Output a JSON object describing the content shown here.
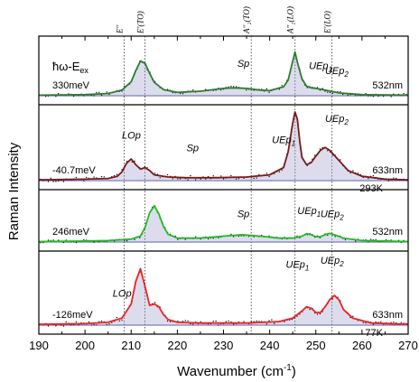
{
  "chart_data": {
    "type": "line",
    "xlabel": "Wavenumber (cm",
    "xlabel_sup": "-1",
    "xlabel_tail": ")",
    "ylabel": "Raman Intensity",
    "xlim": [
      190,
      270
    ],
    "xticks": [
      "190",
      "200",
      "210",
      "220",
      "230",
      "240",
      "250",
      "260",
      "270"
    ],
    "header": "ħω-E",
    "header_sub": "ex",
    "reference_lines": [
      {
        "label": "E''",
        "x": 208.5
      },
      {
        "label": "E'(TO)",
        "x": 213.0
      },
      {
        "label": "A''₂(TO)",
        "x": 236.0
      },
      {
        "label": "A''₂(LO)",
        "x": 245.5
      },
      {
        "label": "E'(LO)",
        "x": 253.5
      }
    ],
    "panels": [
      {
        "detuning": "330meV",
        "laser": "532nm",
        "temperature": "",
        "color": "#2e7d2e",
        "x": [
          190,
          200,
          205,
          208,
          210,
          211,
          212,
          213,
          214,
          215,
          217,
          220,
          225,
          230,
          232,
          235,
          238,
          240,
          243,
          244,
          245,
          245.5,
          246,
          247,
          248,
          249,
          250,
          252,
          255,
          260,
          270
        ],
        "y": [
          0.01,
          0.02,
          0.04,
          0.1,
          0.25,
          0.45,
          0.62,
          0.58,
          0.4,
          0.24,
          0.11,
          0.06,
          0.08,
          0.13,
          0.14,
          0.13,
          0.1,
          0.09,
          0.16,
          0.28,
          0.62,
          0.78,
          0.6,
          0.3,
          0.17,
          0.14,
          0.13,
          0.1,
          0.05,
          0.02,
          0.01
        ],
        "labels": [
          {
            "text": "Sp",
            "x": 233,
            "y": 0.55
          },
          {
            "text": "UEp",
            "sub": "1",
            "x": 248.5,
            "y": 0.52
          },
          {
            "text": "UEp",
            "sub": "2",
            "x": 252,
            "y": 0.45
          }
        ]
      },
      {
        "detuning": "-40.7meV",
        "laser": "633nm",
        "temperature": "293K",
        "color": "#7a1a1a",
        "x": [
          190,
          200,
          205,
          207,
          208,
          209,
          210,
          211,
          212,
          213,
          214,
          215,
          218,
          222,
          228,
          235,
          240,
          243,
          244,
          245,
          245.5,
          246,
          246.5,
          247,
          248,
          249,
          250,
          251,
          252,
          253,
          255,
          257,
          260,
          265,
          270
        ],
        "y": [
          0.01,
          0.02,
          0.03,
          0.06,
          0.12,
          0.24,
          0.3,
          0.22,
          0.16,
          0.18,
          0.14,
          0.08,
          0.05,
          0.04,
          0.04,
          0.05,
          0.08,
          0.18,
          0.4,
          0.8,
          0.95,
          0.85,
          0.55,
          0.32,
          0.22,
          0.25,
          0.34,
          0.42,
          0.46,
          0.42,
          0.28,
          0.14,
          0.06,
          0.02,
          0.01
        ],
        "labels": [
          {
            "text": "LOp",
            "x": 208,
            "y": 0.6
          },
          {
            "text": "Sp",
            "x": 222,
            "y": 0.45
          },
          {
            "text": "UEp",
            "sub": "1",
            "x": 240.5,
            "y": 0.55
          },
          {
            "text": "UEp",
            "sub": "2",
            "x": 252,
            "y": 0.8
          }
        ]
      },
      {
        "detuning": "246meV",
        "laser": "532nm",
        "temperature": "",
        "color": "#22bb22",
        "x": [
          190,
          200,
          205,
          210,
          212,
          213,
          214,
          215,
          216,
          217,
          218,
          220,
          225,
          230,
          234,
          238,
          242,
          245,
          247,
          248,
          249,
          250,
          251,
          252,
          253,
          254,
          256,
          260,
          270
        ],
        "y": [
          0.01,
          0.02,
          0.03,
          0.06,
          0.12,
          0.3,
          0.6,
          0.74,
          0.58,
          0.32,
          0.16,
          0.08,
          0.08,
          0.12,
          0.15,
          0.12,
          0.08,
          0.08,
          0.12,
          0.17,
          0.15,
          0.11,
          0.11,
          0.15,
          0.18,
          0.15,
          0.08,
          0.03,
          0.01
        ],
        "labels": [
          {
            "text": "Sp",
            "x": 233,
            "y": 0.55
          },
          {
            "text": "UEp",
            "sub": "1",
            "x": 246,
            "y": 0.6
          },
          {
            "text": "UEp",
            "sub": "2",
            "x": 251,
            "y": 0.55
          }
        ]
      },
      {
        "detuning": "-126meV",
        "laser": "633nm",
        "temperature": "77K",
        "color": "#ee2222",
        "x": [
          190,
          200,
          205,
          208,
          210,
          211,
          212,
          213,
          214,
          215,
          216,
          217,
          218,
          220,
          225,
          235,
          242,
          245,
          247,
          248,
          249,
          250,
          251,
          252,
          253,
          254,
          255,
          256,
          258,
          262,
          270
        ],
        "y": [
          0.01,
          0.02,
          0.04,
          0.1,
          0.3,
          0.62,
          0.8,
          0.55,
          0.28,
          0.3,
          0.26,
          0.15,
          0.08,
          0.04,
          0.03,
          0.03,
          0.05,
          0.1,
          0.2,
          0.26,
          0.24,
          0.18,
          0.18,
          0.26,
          0.36,
          0.42,
          0.36,
          0.22,
          0.1,
          0.03,
          0.01
        ],
        "labels": [
          {
            "text": "LOp",
            "x": 206,
            "y": 0.45
          },
          {
            "text": "UEp",
            "sub": "1",
            "x": 243.5,
            "y": 0.8
          },
          {
            "text": "UEp",
            "sub": "2",
            "x": 251,
            "y": 0.85
          }
        ]
      }
    ]
  }
}
